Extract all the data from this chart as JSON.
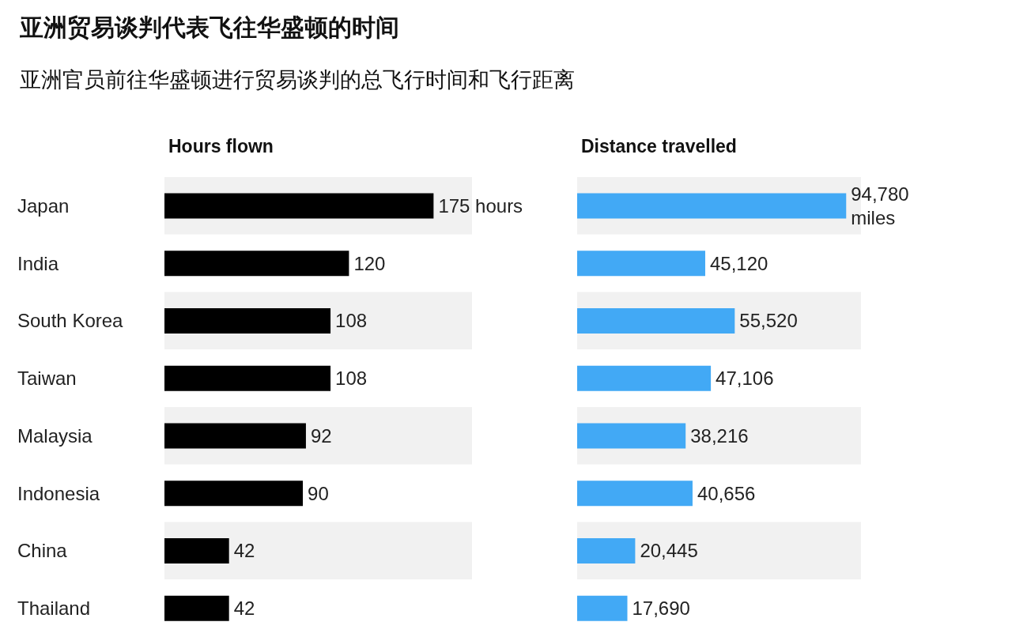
{
  "chart_data": [
    {
      "type": "bar",
      "orientation": "horizontal",
      "title": "亚洲贸易谈判代表飞往华盛顿的时间",
      "subtitle": "亚洲官员前往华盛顿进行贸易谈判的总飞行时间和飞行距离",
      "xlabel": "Hours flown",
      "categories": [
        "Japan",
        "India",
        "South Korea",
        "Taiwan",
        "Malaysia",
        "Indonesia",
        "China",
        "Thailand"
      ],
      "values": [
        175,
        120,
        108,
        108,
        92,
        90,
        42,
        42
      ],
      "color": "#000000",
      "value_labels": [
        "175 hours",
        "120",
        "108",
        "108",
        "92",
        "90",
        "42",
        "42"
      ],
      "xlim": [
        0,
        200
      ]
    },
    {
      "type": "bar",
      "orientation": "horizontal",
      "xlabel": "Distance travelled",
      "categories": [
        null,
        null,
        null,
        null,
        null,
        null,
        null,
        null
      ],
      "values": [
        94780,
        45120,
        55520,
        47106,
        38216,
        40656,
        20445,
        17690
      ],
      "color": "#42a9f5",
      "value_labels": [
        "94,780 miles",
        "45,120",
        "55,520",
        "47,106",
        "38,216",
        "40,656",
        "20,445",
        "17,690"
      ],
      "xlim": [
        0,
        100000
      ]
    }
  ]
}
